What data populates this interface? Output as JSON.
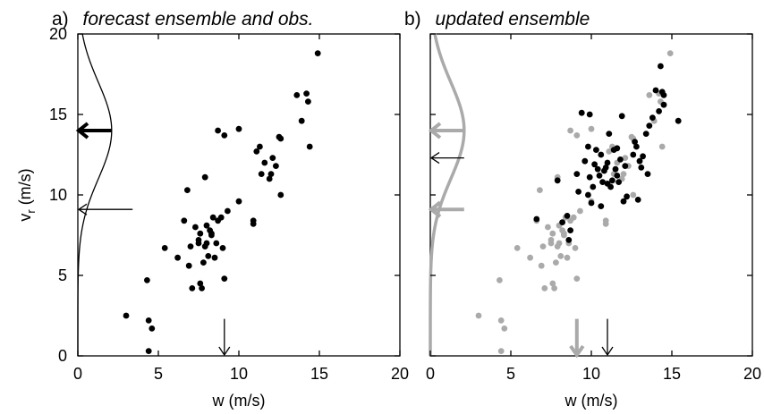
{
  "chart_data": [
    {
      "type": "scatter",
      "panel_letter": "a)",
      "title": "forecast ensemble and obs.",
      "xlabel": "w (m/s)",
      "ylabel_main": "v",
      "ylabel_sub": "r",
      "ylabel_tail": " (m/s)",
      "xlim": [
        0,
        20
      ],
      "ylim": [
        0,
        20
      ],
      "xticks": [
        "0",
        "5",
        "10",
        "15",
        "20"
      ],
      "yticks": [
        "0",
        "5",
        "10",
        "15",
        "20"
      ],
      "grid": false,
      "series": [
        {
          "color": "#000000",
          "points": [
            [
              3.0,
              2.5
            ],
            [
              4.3,
              4.7
            ],
            [
              4.4,
              2.2
            ],
            [
              4.6,
              1.7
            ],
            [
              4.4,
              0.3
            ],
            [
              5.4,
              6.7
            ],
            [
              6.2,
              6.1
            ],
            [
              6.6,
              8.4
            ],
            [
              6.8,
              10.3
            ],
            [
              7.0,
              6.8
            ],
            [
              6.9,
              5.6
            ],
            [
              7.1,
              4.2
            ],
            [
              7.3,
              8.0
            ],
            [
              7.5,
              7.2
            ],
            [
              7.6,
              4.5
            ],
            [
              7.7,
              4.2
            ],
            [
              7.8,
              5.8
            ],
            [
              7.9,
              6.8
            ],
            [
              8.0,
              7.0
            ],
            [
              8.1,
              6.2
            ],
            [
              8.2,
              7.8
            ],
            [
              8.3,
              7.6
            ],
            [
              8.4,
              8.6
            ],
            [
              8.5,
              6.1
            ],
            [
              8.6,
              7.0
            ],
            [
              8.7,
              8.4
            ],
            [
              8.9,
              8.6
            ],
            [
              9.0,
              6.7
            ],
            [
              9.1,
              4.8
            ],
            [
              8.7,
              14.0
            ],
            [
              9.1,
              13.7
            ],
            [
              9.3,
              9.0
            ],
            [
              10.0,
              14.1
            ],
            [
              10.0,
              9.6
            ],
            [
              10.9,
              8.2
            ],
            [
              10.9,
              8.4
            ],
            [
              11.1,
              12.7
            ],
            [
              11.3,
              13.0
            ],
            [
              11.4,
              11.3
            ],
            [
              11.6,
              12.0
            ],
            [
              11.9,
              11.0
            ],
            [
              12.0,
              11.3
            ],
            [
              12.1,
              12.3
            ],
            [
              12.3,
              11.8
            ],
            [
              12.6,
              10.0
            ],
            [
              12.5,
              13.6
            ],
            [
              12.6,
              13.5
            ],
            [
              13.6,
              16.2
            ],
            [
              13.9,
              14.6
            ],
            [
              14.2,
              16.3
            ],
            [
              14.3,
              15.8
            ],
            [
              14.4,
              13.0
            ],
            [
              14.9,
              18.8
            ],
            [
              7.5,
              7.0
            ],
            [
              7.9,
              11.1
            ],
            [
              8.0,
              8.1
            ],
            [
              8.3,
              7.5
            ],
            [
              7.6,
              7.6
            ]
          ]
        }
      ],
      "curves": [
        {
          "color": "#000000",
          "axis": "y",
          "center": 14.0,
          "sigma": 3.0,
          "peak_x": 2.1
        }
      ],
      "arrows": [
        {
          "color": "#000000",
          "axis": "y",
          "value": 14.0,
          "length": 2.1,
          "weight": "bold"
        },
        {
          "color": "#000000",
          "axis": "y",
          "value": 9.1,
          "length": 3.4,
          "weight": "thin"
        },
        {
          "color": "#000000",
          "axis": "x",
          "value": 9.1,
          "length": 2.3,
          "weight": "thin"
        }
      ]
    },
    {
      "type": "scatter",
      "panel_letter": "b)",
      "title": "updated ensemble",
      "xlabel": "w (m/s)",
      "xlim": [
        0,
        20
      ],
      "ylim": [
        0,
        20
      ],
      "xticks": [
        "0",
        "5",
        "10",
        "15",
        "20"
      ],
      "yticks": [],
      "grid": false,
      "series": [
        {
          "color": "#aaaaaa",
          "points": [
            [
              3.0,
              2.5
            ],
            [
              4.3,
              4.7
            ],
            [
              4.4,
              2.2
            ],
            [
              4.6,
              1.7
            ],
            [
              4.4,
              0.3
            ],
            [
              5.4,
              6.7
            ],
            [
              6.2,
              6.1
            ],
            [
              6.6,
              8.4
            ],
            [
              6.8,
              10.3
            ],
            [
              7.0,
              6.8
            ],
            [
              6.9,
              5.6
            ],
            [
              7.1,
              4.2
            ],
            [
              7.3,
              8.0
            ],
            [
              7.5,
              7.2
            ],
            [
              7.6,
              4.5
            ],
            [
              7.7,
              4.2
            ],
            [
              7.8,
              5.8
            ],
            [
              7.9,
              6.8
            ],
            [
              8.0,
              7.0
            ],
            [
              8.1,
              6.2
            ],
            [
              8.2,
              7.8
            ],
            [
              8.3,
              7.6
            ],
            [
              8.4,
              8.6
            ],
            [
              8.5,
              6.1
            ],
            [
              8.6,
              7.0
            ],
            [
              8.7,
              8.4
            ],
            [
              8.9,
              8.6
            ],
            [
              9.0,
              6.7
            ],
            [
              9.1,
              4.8
            ],
            [
              8.7,
              14.0
            ],
            [
              9.1,
              13.7
            ],
            [
              9.3,
              9.0
            ],
            [
              10.0,
              14.1
            ],
            [
              10.0,
              9.6
            ],
            [
              10.9,
              8.2
            ],
            [
              10.9,
              8.4
            ],
            [
              11.1,
              12.7
            ],
            [
              11.3,
              13.0
            ],
            [
              11.4,
              11.3
            ],
            [
              11.6,
              12.0
            ],
            [
              11.9,
              11.0
            ],
            [
              12.0,
              11.3
            ],
            [
              12.1,
              12.3
            ],
            [
              12.3,
              11.8
            ],
            [
              12.6,
              10.0
            ],
            [
              12.5,
              13.6
            ],
            [
              12.6,
              13.5
            ],
            [
              13.6,
              16.2
            ],
            [
              13.9,
              14.6
            ],
            [
              14.2,
              16.3
            ],
            [
              14.3,
              15.8
            ],
            [
              14.4,
              13.0
            ],
            [
              14.9,
              18.8
            ],
            [
              7.5,
              7.0
            ],
            [
              7.9,
              11.1
            ],
            [
              8.0,
              8.1
            ],
            [
              8.3,
              7.5
            ],
            [
              7.6,
              7.6
            ]
          ]
        },
        {
          "color": "#000000",
          "points": [
            [
              6.6,
              8.5
            ],
            [
              7.9,
              10.9
            ],
            [
              8.2,
              8.3
            ],
            [
              8.5,
              8.7
            ],
            [
              8.6,
              7.2
            ],
            [
              8.7,
              7.8
            ],
            [
              9.1,
              11.3
            ],
            [
              9.2,
              10.2
            ],
            [
              9.4,
              15.1
            ],
            [
              9.6,
              12.1
            ],
            [
              9.8,
              13.0
            ],
            [
              9.9,
              15.0
            ],
            [
              9.9,
              11.1
            ],
            [
              10.0,
              9.5
            ],
            [
              10.1,
              10.5
            ],
            [
              10.2,
              11.9
            ],
            [
              10.3,
              12.8
            ],
            [
              10.4,
              11.6
            ],
            [
              10.5,
              11.2
            ],
            [
              10.6,
              12.5
            ],
            [
              10.7,
              10.8
            ],
            [
              10.8,
              11.5
            ],
            [
              10.9,
              11.7
            ],
            [
              11.0,
              10.7
            ],
            [
              11.0,
              12.0
            ],
            [
              11.1,
              13.8
            ],
            [
              11.2,
              10.5
            ],
            [
              11.3,
              10.9
            ],
            [
              11.4,
              12.8
            ],
            [
              11.5,
              11.6
            ],
            [
              11.6,
              11.2
            ],
            [
              11.7,
              10.8
            ],
            [
              11.8,
              12.2
            ],
            [
              11.9,
              14.9
            ],
            [
              12.0,
              9.6
            ],
            [
              12.1,
              11.8
            ],
            [
              12.2,
              9.9
            ],
            [
              12.6,
              12.5
            ],
            [
              12.7,
              13.3
            ],
            [
              12.8,
              13.0
            ],
            [
              13.0,
              12.1
            ],
            [
              13.1,
              11.7
            ],
            [
              13.2,
              12.4
            ],
            [
              13.4,
              13.8
            ],
            [
              13.5,
              11.3
            ],
            [
              13.6,
              14.3
            ],
            [
              13.8,
              14.8
            ],
            [
              14.0,
              16.5
            ],
            [
              14.2,
              15.2
            ],
            [
              14.3,
              18.0
            ],
            [
              14.4,
              16.4
            ],
            [
              14.5,
              16.2
            ],
            [
              14.5,
              15.6
            ],
            [
              15.4,
              14.6
            ],
            [
              12.9,
              9.7
            ],
            [
              10.6,
              9.3
            ],
            [
              9.8,
              10.0
            ],
            [
              11.6,
              12.9
            ]
          ]
        }
      ],
      "curves": [
        {
          "color": "#aaaaaa",
          "axis": "y",
          "center": 14.0,
          "sigma": 3.0,
          "peak_x": 2.1
        }
      ],
      "arrows": [
        {
          "color": "#aaaaaa",
          "axis": "y",
          "value": 14.0,
          "length": 2.1,
          "weight": "bold"
        },
        {
          "color": "#aaaaaa",
          "axis": "y",
          "value": 9.1,
          "length": 2.1,
          "weight": "bold"
        },
        {
          "color": "#000000",
          "axis": "y",
          "value": 12.3,
          "length": 2.1,
          "weight": "thin"
        },
        {
          "color": "#aaaaaa",
          "axis": "x",
          "value": 9.1,
          "length": 2.3,
          "weight": "bold"
        },
        {
          "color": "#000000",
          "axis": "x",
          "value": 11.0,
          "length": 2.3,
          "weight": "thin"
        }
      ]
    }
  ]
}
